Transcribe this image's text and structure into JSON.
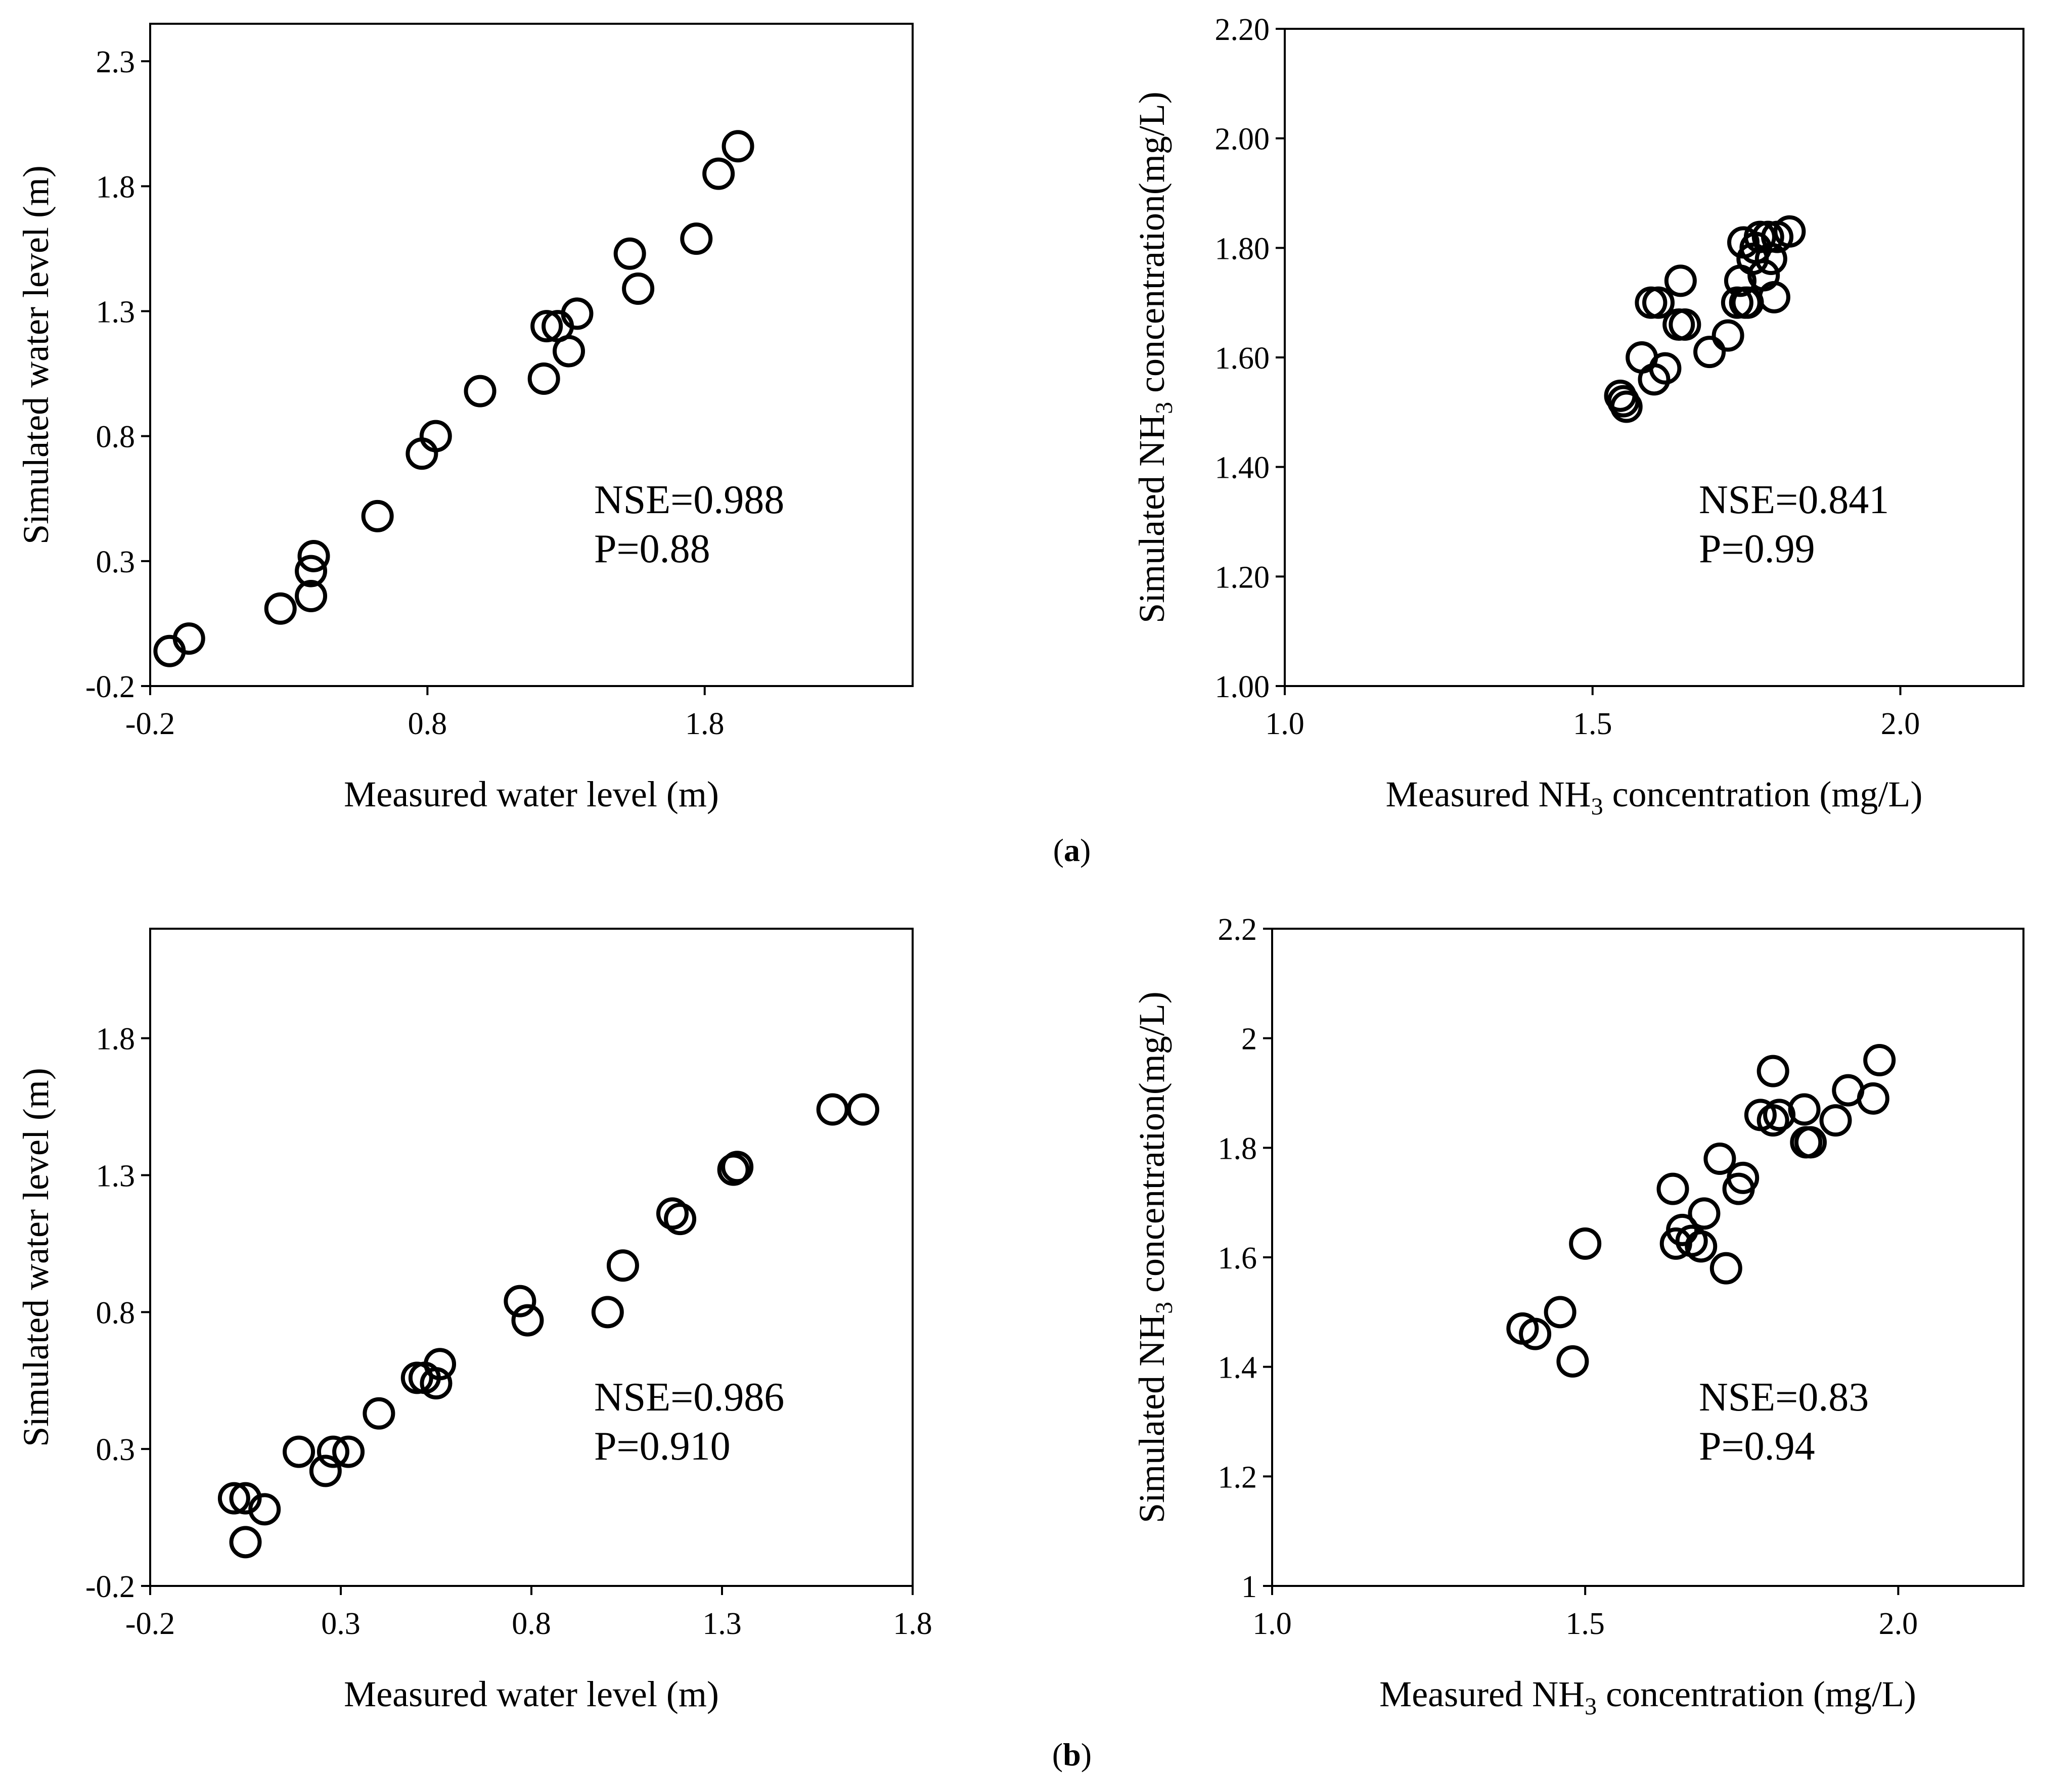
{
  "figure": {
    "label_a_open": "(",
    "label_a": "a",
    "label_a_close": ")",
    "label_b_open": "(",
    "label_b": "b",
    "label_b_close": ")"
  },
  "chart_data": [
    {
      "id": "a-water",
      "type": "scatter",
      "xlabel": "Measured water level (m)",
      "ylabel": "Simulated water level (m)",
      "xlim": [
        -0.2,
        2.55
      ],
      "ylim": [
        -0.2,
        2.45
      ],
      "xticks": [
        -0.2,
        0.8,
        1.8
      ],
      "xtick_labels": [
        "-0.2",
        "0.8",
        "1.8"
      ],
      "yticks": [
        -0.2,
        0.3,
        0.8,
        1.3,
        1.8,
        2.3
      ],
      "ytick_labels": [
        "-0.2",
        "0.3",
        "0.8",
        "1.3",
        "1.8",
        "2.3"
      ],
      "annotation": [
        "NSE=0.988",
        "P=0.88"
      ],
      "x": [
        -0.13,
        -0.06,
        0.27,
        0.38,
        0.38,
        0.39,
        0.62,
        0.78,
        0.83,
        0.99,
        1.22,
        1.23,
        1.27,
        1.31,
        1.34,
        1.53,
        1.56,
        1.77,
        1.85,
        1.92
      ],
      "y": [
        -0.06,
        -0.01,
        0.11,
        0.16,
        0.26,
        0.32,
        0.48,
        0.73,
        0.8,
        0.98,
        1.03,
        1.24,
        1.24,
        1.14,
        1.29,
        1.53,
        1.39,
        1.59,
        1.85,
        1.96
      ]
    },
    {
      "id": "a-nh3",
      "type": "scatter",
      "xlabel_main": "Measured NH",
      "xlabel_sub": "3",
      "xlabel_tail": " concentration (mg/L)",
      "ylabel_main": "Simulated NH",
      "ylabel_sub": "3",
      "ylabel_tail": " concentration(mg/L)",
      "xlim": [
        1.0,
        2.2
      ],
      "ylim": [
        1.0,
        2.2
      ],
      "xticks": [
        1.0,
        1.5,
        2.0
      ],
      "xtick_labels": [
        "1.0",
        "1.5",
        "2.0"
      ],
      "yticks": [
        1.0,
        1.2,
        1.4,
        1.6,
        1.8,
        2.0,
        2.2
      ],
      "ytick_labels": [
        "1.00",
        "1.20",
        "1.40",
        "1.60",
        "1.80",
        "2.00",
        "2.20"
      ],
      "annotation": [
        "NSE=0.841",
        "P=0.99"
      ],
      "x": [
        1.545,
        1.55,
        1.555,
        1.58,
        1.595,
        1.6,
        1.607,
        1.618,
        1.64,
        1.643,
        1.65,
        1.69,
        1.72,
        1.735,
        1.74,
        1.745,
        1.748,
        1.752,
        1.76,
        1.765,
        1.772,
        1.778,
        1.785,
        1.79,
        1.795,
        1.8,
        1.82
      ],
      "y": [
        1.53,
        1.52,
        1.51,
        1.6,
        1.7,
        1.56,
        1.7,
        1.58,
        1.66,
        1.74,
        1.66,
        1.61,
        1.64,
        1.7,
        1.74,
        1.81,
        1.7,
        1.7,
        1.78,
        1.8,
        1.82,
        1.75,
        1.82,
        1.78,
        1.71,
        1.82,
        1.83
      ]
    },
    {
      "id": "b-water",
      "type": "scatter",
      "xlabel": "Measured water level (m)",
      "ylabel": "Simulated water level (m)",
      "xlim": [
        -0.2,
        1.8
      ],
      "ylim": [
        -0.2,
        2.2
      ],
      "xticks": [
        -0.2,
        0.3,
        0.8,
        1.3,
        1.8
      ],
      "xtick_labels": [
        "-0.2",
        "0.3",
        "0.8",
        "1.3",
        "1.8"
      ],
      "yticks": [
        -0.2,
        0.3,
        0.8,
        1.3,
        1.8
      ],
      "ytick_labels": [
        "-0.2",
        "0.3",
        "0.8",
        "1.3",
        "1.8"
      ],
      "annotation": [
        "NSE=0.986",
        "P=0.910"
      ],
      "x": [
        0.02,
        0.05,
        0.05,
        0.1,
        0.19,
        0.26,
        0.28,
        0.32,
        0.4,
        0.5,
        0.52,
        0.55,
        0.56,
        0.77,
        0.79,
        1.0,
        1.04,
        1.17,
        1.19,
        1.33,
        1.34,
        1.59,
        1.67
      ],
      "y": [
        0.12,
        0.12,
        -0.04,
        0.08,
        0.29,
        0.22,
        0.29,
        0.29,
        0.43,
        0.56,
        0.56,
        0.54,
        0.61,
        0.84,
        0.77,
        0.8,
        0.97,
        1.16,
        1.14,
        1.32,
        1.33,
        1.54,
        1.54
      ]
    },
    {
      "id": "b-nh3",
      "type": "scatter",
      "xlabel_main": "Measured NH",
      "xlabel_sub": "3",
      "xlabel_tail": " concentration (mg/L)",
      "ylabel_main": "Simulated NH",
      "ylabel_sub": "3",
      "ylabel_tail": " concentration(mg/L)",
      "xlim": [
        1.0,
        2.2
      ],
      "ylim": [
        1.0,
        2.2
      ],
      "xticks": [
        1.0,
        1.5,
        2.0
      ],
      "xtick_labels": [
        "1.0",
        "1.5",
        "2.0"
      ],
      "yticks": [
        1.0,
        1.2,
        1.4,
        1.6,
        1.8,
        2.0,
        2.2
      ],
      "ytick_labels": [
        "1",
        "1.2",
        "1.4",
        "1.6",
        "1.8",
        "2",
        "2.2"
      ],
      "annotation": [
        "NSE=0.83",
        "P=0.94"
      ],
      "x": [
        1.4,
        1.42,
        1.46,
        1.48,
        1.5,
        1.64,
        1.645,
        1.655,
        1.67,
        1.685,
        1.69,
        1.715,
        1.725,
        1.745,
        1.752,
        1.78,
        1.8,
        1.8,
        1.81,
        1.85,
        1.853,
        1.86,
        1.9,
        1.92,
        1.96,
        1.97
      ],
      "y": [
        1.47,
        1.46,
        1.5,
        1.41,
        1.625,
        1.725,
        1.625,
        1.65,
        1.63,
        1.62,
        1.68,
        1.78,
        1.58,
        1.725,
        1.745,
        1.86,
        1.94,
        1.85,
        1.86,
        1.87,
        1.81,
        1.81,
        1.85,
        1.905,
        1.89,
        1.96
      ]
    }
  ]
}
